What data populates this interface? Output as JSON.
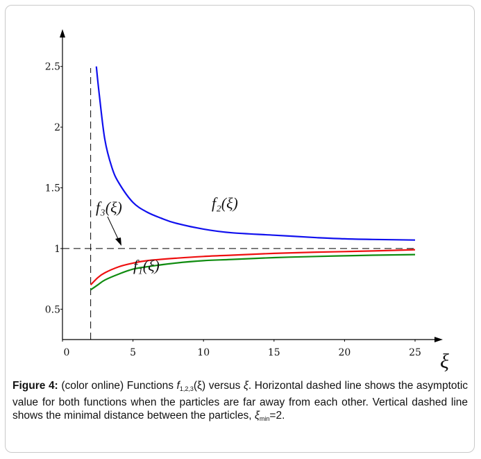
{
  "chart_data": {
    "type": "line",
    "xlim": [
      0,
      25
    ],
    "ylim": [
      0.25,
      2.75
    ],
    "x_ticks": [
      "0",
      "5",
      "10",
      "15",
      "20",
      "25"
    ],
    "y_ticks": [
      "0.5",
      "1",
      "1.5",
      "2",
      "2.5"
    ],
    "xlabel": "ξ",
    "grid": false,
    "reference_lines": {
      "horizontal_y": 1,
      "vertical_x": 2
    },
    "series": [
      {
        "name": "f₂(ξ)",
        "color": "#1010ee",
        "x": [
          2.4,
          2.6,
          3,
          3.5,
          4,
          5,
          6,
          7,
          8,
          10,
          12,
          15,
          18,
          20,
          22,
          25
        ],
        "y": [
          2.5,
          2.28,
          1.9,
          1.67,
          1.54,
          1.38,
          1.3,
          1.25,
          1.21,
          1.16,
          1.13,
          1.11,
          1.09,
          1.08,
          1.075,
          1.07
        ]
      },
      {
        "name": "f₃(ξ)",
        "color": "#ee1010",
        "x": [
          2,
          2.5,
          3,
          4,
          5,
          6,
          8,
          10,
          12,
          15,
          18,
          20,
          22,
          25
        ],
        "y": [
          0.7,
          0.76,
          0.8,
          0.85,
          0.88,
          0.9,
          0.92,
          0.935,
          0.945,
          0.96,
          0.97,
          0.975,
          0.98,
          0.99
        ]
      },
      {
        "name": "f₁(ξ)",
        "color": "#108c10",
        "x": [
          2,
          2.5,
          3,
          4,
          5,
          6,
          8,
          10,
          12,
          15,
          18,
          20,
          22,
          25
        ],
        "y": [
          0.66,
          0.7,
          0.74,
          0.79,
          0.83,
          0.85,
          0.88,
          0.9,
          0.91,
          0.925,
          0.935,
          0.94,
          0.945,
          0.95
        ]
      }
    ],
    "annotations": [
      {
        "label": "f₂(ξ)",
        "series": "f₂(ξ)"
      },
      {
        "label": "f₃(ξ)",
        "series": "f₃(ξ)",
        "arrow": true
      },
      {
        "label": "f₁(ξ)",
        "series": "f₁(ξ)"
      }
    ]
  },
  "caption": {
    "label": "Figure 4:",
    "text_1": " (color online) Functions ",
    "func_symbol": "f",
    "func_subscript": "1,2,3",
    "text_2": "(ξ) versus ",
    "var_symbol": "ξ",
    "text_3": ". Horizontal dashed line shows the asymptotic value for both functions when the particles are far away from each other. Vertical dashed line shows the minimal distance between the particles, ",
    "min_symbol": "ξ",
    "min_subscript": "min",
    "text_4": "=2."
  }
}
